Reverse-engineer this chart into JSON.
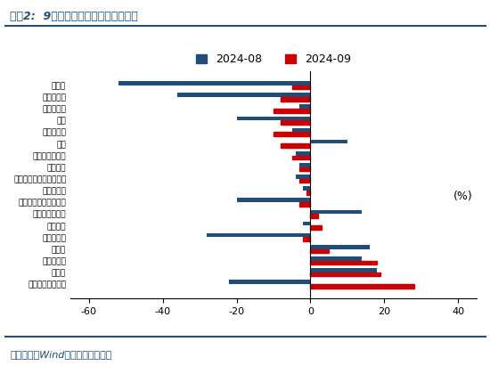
{
  "title": "图表2:  9月四大税种收入增速表现分化",
  "categories": [
    "印花税",
    "车辆购置税",
    "国内消费税",
    "契税",
    "国内增值税",
    "关税",
    "城市维护建设税",
    "税收收入",
    "进口环节增值税和消费税",
    "个人所得税",
    "土地和房地产相关税收",
    "城镇土地使用税",
    "其他税收",
    "土地增值税",
    "资源税",
    "耕地占用税",
    "房产税",
    "外贸企业出口退税"
  ],
  "values_2024_08": [
    -52,
    -36,
    -3,
    -20,
    -5,
    10,
    -4,
    -3,
    -4,
    -2,
    -20,
    14,
    -2,
    -28,
    16,
    14,
    18,
    -22
  ],
  "values_2024_09": [
    -5,
    -8,
    -10,
    -8,
    -10,
    -8,
    -5,
    -3,
    -3,
    -1,
    -3,
    2,
    3,
    -2,
    5,
    18,
    19,
    28
  ],
  "color_2024_08": "#1f4e79",
  "color_2024_09": "#cc0000",
  "footer": "资料来源：Wind，国盛证券研究所",
  "xlim": [
    -65,
    45
  ],
  "xticks": [
    -60,
    -40,
    -20,
    0,
    20,
    40
  ],
  "ylabel_unit": "(%)"
}
